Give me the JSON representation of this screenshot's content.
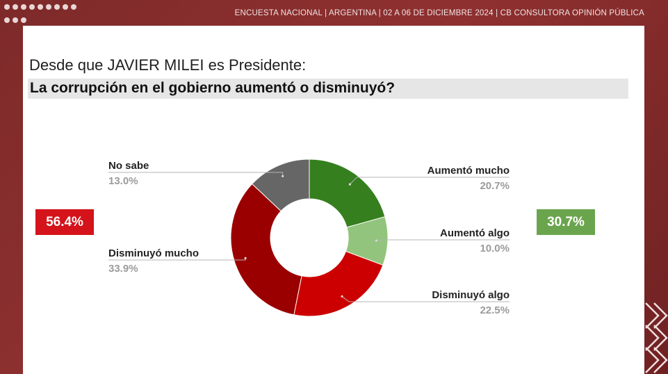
{
  "header": {
    "survey_info": "ENCUESTA NACIONAL  |  ARGENTINA  | 02 A 06 DE DICIEMBRE 2024 | CB CONSULTORA OPINIÓN PÚBLICA"
  },
  "question": {
    "subtitle": "Desde que JAVIER MILEI es Presidente:",
    "title": "La corrupción en el gobierno aumentó o disminuyó?"
  },
  "summary": {
    "left_total": "56.4%",
    "left_color": "#d4131a",
    "right_total": "30.7%",
    "right_color": "#6aa54d"
  },
  "chart_data": {
    "type": "pie",
    "title": "La corrupción en el gobierno aumentó o disminuyó?",
    "donut": true,
    "slices": [
      {
        "label": "Aumentó mucho",
        "value": 20.7,
        "display": "20.7%",
        "color": "#367f1f",
        "side": "right"
      },
      {
        "label": "Aumentó algo",
        "value": 10.0,
        "display": "10.0%",
        "color": "#93c47d",
        "side": "right"
      },
      {
        "label": "Disminuyó algo",
        "value": 22.5,
        "display": "22.5%",
        "color": "#cc0000",
        "side": "right"
      },
      {
        "label": "Disminuyó mucho",
        "value": 33.9,
        "display": "33.9%",
        "color": "#9a0000",
        "side": "left"
      },
      {
        "label": "No sabe",
        "value": 13.0,
        "display": "13.0%",
        "color": "#666666",
        "side": "left"
      }
    ]
  }
}
